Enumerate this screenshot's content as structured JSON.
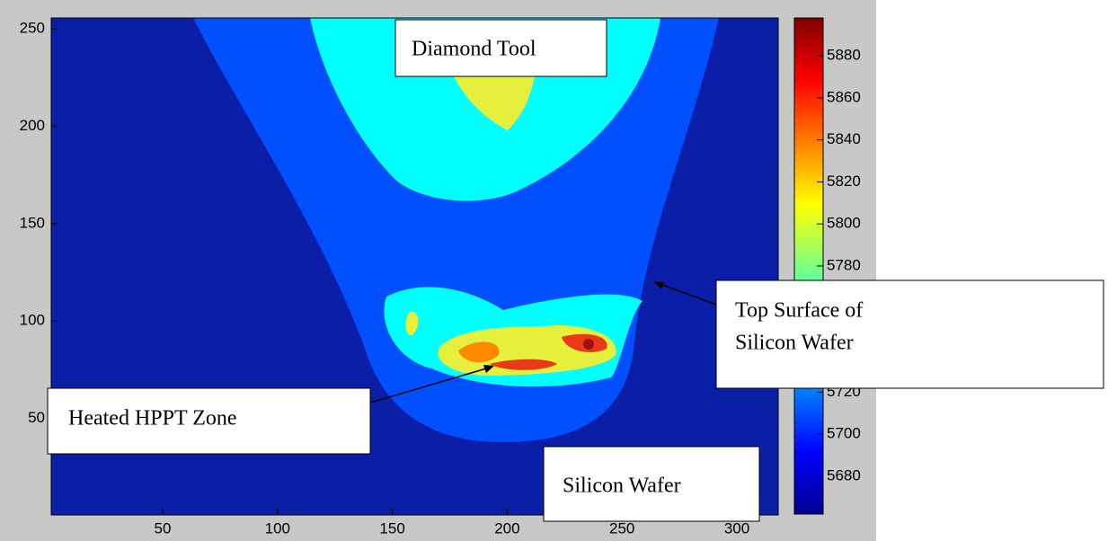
{
  "chart_data": {
    "type": "heatmap",
    "xlim": [
      0.5,
      317.5
    ],
    "ylim": [
      0.5,
      255.5
    ],
    "xticks": [
      50,
      100,
      150,
      200,
      250,
      300
    ],
    "yticks": [
      50,
      100,
      150,
      200,
      250
    ],
    "colorbar": {
      "clim": [
        5662,
        5898
      ],
      "ticks": [
        5680,
        5700,
        5720,
        5780,
        5800,
        5820,
        5840,
        5860,
        5880
      ]
    },
    "annotations": [
      [
        "Diamond Tool"
      ],
      [
        "Top Surface of",
        "Silicon Wafer"
      ],
      [
        "Heated HPPT Zone"
      ],
      [
        "Silicon Wafer"
      ]
    ]
  }
}
